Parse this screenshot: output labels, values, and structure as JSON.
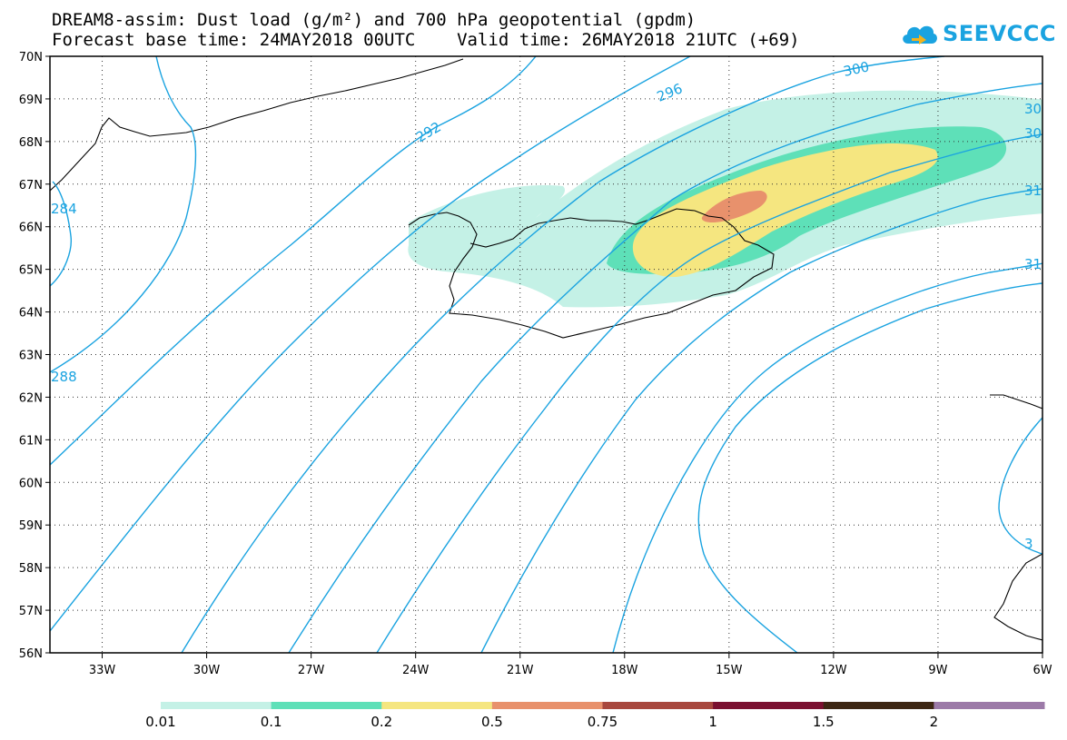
{
  "title_line1": "DREAM8-assim: Dust load (g/m²) and 700 hPa geopotential (gpdm)",
  "title_line2": "Forecast base time: 24MAY2018 00UTC    Valid time: 26MAY2018 21UTC (+69)",
  "logo_text": "SEEVCCC",
  "logo_icon": "cloud-logo-icon",
  "map": {
    "lon_range": [
      -34.5,
      -6
    ],
    "lat_range": [
      56,
      70
    ],
    "lon_ticks": [
      "33W",
      "30W",
      "27W",
      "24W",
      "21W",
      "18W",
      "15W",
      "12W",
      "9W",
      "6W"
    ],
    "lat_ticks": [
      "70N",
      "69N",
      "68N",
      "67N",
      "66N",
      "65N",
      "64N",
      "63N",
      "62N",
      "61N",
      "60N",
      "59N",
      "58N",
      "57N",
      "56N"
    ],
    "contour_labels": [
      "284",
      "288",
      "292",
      "296",
      "300",
      "30",
      "30",
      "31",
      "31",
      "3"
    ],
    "contour_color": "#1aa3e0",
    "grid": "dotted"
  },
  "colorbar": {
    "thresholds": [
      "0.01",
      "0.1",
      "0.2",
      "0.5",
      "0.75",
      "1",
      "1.5",
      "2"
    ],
    "colors": [
      "#c4f1e6",
      "#5ee0b8",
      "#f5e680",
      "#e8916c",
      "#a8483e",
      "#7a1030",
      "#3d2613",
      "#9c7aa8"
    ]
  }
}
